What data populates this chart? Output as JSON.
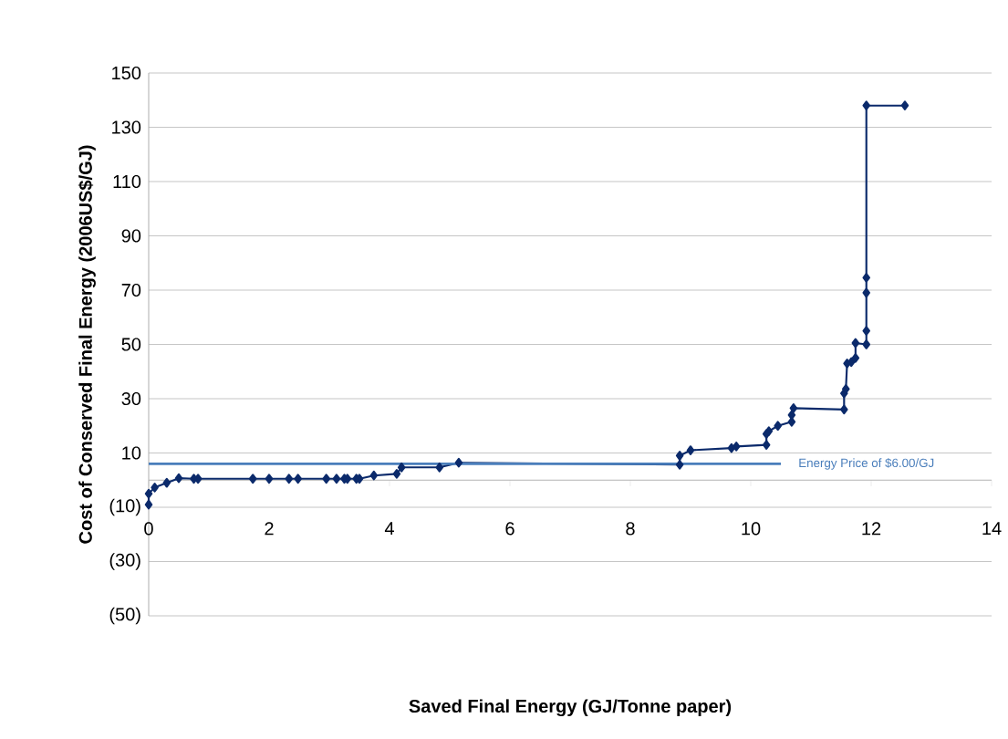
{
  "chart_data": {
    "type": "line",
    "xlabel": "Saved Final Energy (GJ/Tonne paper)",
    "ylabel": "Cost of Conserved Final Energy  (2006US$/GJ)",
    "x": [
      0,
      0,
      0.1,
      0.3,
      0.5,
      0.75,
      0.82,
      1.73,
      2.0,
      2.33,
      2.48,
      2.95,
      3.12,
      3.25,
      3.3,
      3.45,
      3.5,
      3.74,
      4.12,
      4.2,
      4.83,
      5.15,
      8.82,
      8.82,
      9.0,
      9.68,
      9.76,
      10.26,
      10.26,
      10.3,
      10.45,
      10.68,
      10.68,
      10.71,
      11.55,
      11.55,
      11.58,
      11.6,
      11.67,
      11.74,
      11.74,
      11.92,
      11.92,
      11.92,
      11.92,
      11.92,
      12.56
    ],
    "values": [
      -9,
      -5,
      -2.7,
      -1,
      0.7,
      0.5,
      0.5,
      0.5,
      0.5,
      0.5,
      0.5,
      0.5,
      0.5,
      0.5,
      0.5,
      0.5,
      0.5,
      1.7,
      2.3,
      4.7,
      4.7,
      6.4,
      5.7,
      9,
      11,
      11.8,
      12.4,
      13,
      17,
      18,
      20,
      21.5,
      24,
      26.5,
      26,
      32,
      33.6,
      43,
      43.5,
      45,
      50.5,
      50,
      55,
      69,
      74.6,
      138,
      138
    ],
    "color": "#0b2a6b",
    "marker": "diamond",
    "line_style": "solid",
    "xlim": [
      0,
      14
    ],
    "xticks": [
      0,
      2,
      4,
      6,
      8,
      10,
      12,
      14
    ],
    "ylim": [
      -50,
      150
    ],
    "yticks": [
      {
        "value": -50,
        "label": "(50)"
      },
      {
        "value": -30,
        "label": "(30)"
      },
      {
        "value": -10,
        "label": "(10)"
      },
      10,
      30,
      50,
      70,
      90,
      110,
      130,
      150
    ],
    "grid": "y",
    "ref_lines": [
      {
        "axis": "y",
        "value": 6,
        "label": "Energy Price of $6.00/GJ",
        "color": "#4a7ebb"
      }
    ]
  }
}
